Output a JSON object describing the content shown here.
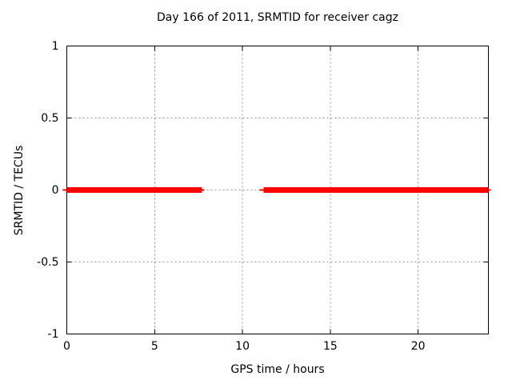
{
  "title": "Day 166 of 2011, SRMTID for receiver cagz",
  "chart_data": {
    "type": "line",
    "title": "Day 166 of 2011, SRMTID for receiver cagz",
    "xlabel": "GPS time / hours",
    "ylabel": "SRMTID / TECUs",
    "xlim": [
      0,
      24
    ],
    "ylim": [
      -1,
      1
    ],
    "x_ticks": [
      0,
      5,
      10,
      15,
      20
    ],
    "y_ticks": [
      -1,
      -0.5,
      0,
      0.5,
      1
    ],
    "grid": true,
    "legend": "none",
    "series": [
      {
        "name": "SRMTID",
        "color": "#ff0000",
        "line_width": 7,
        "segments": [
          {
            "x_start": 0,
            "x_end": 7.7,
            "y": 0
          },
          {
            "x_start": 11.2,
            "x_end": 24,
            "y": 0
          }
        ]
      }
    ],
    "colors": {
      "frame": "#000000",
      "grid": "#969696",
      "background": "#ffffff",
      "text": "#000000"
    }
  }
}
